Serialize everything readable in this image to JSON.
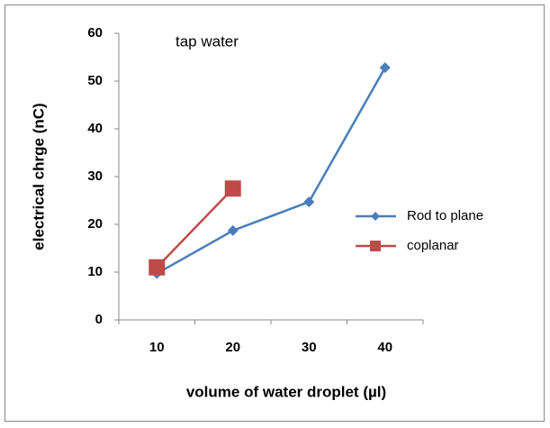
{
  "chart_data": {
    "type": "line",
    "title": "tap water",
    "x_label": "volume of water droplet (µl)",
    "y_label": "electrical chrge (nC)",
    "categories": [
      "10",
      "20",
      "30",
      "40"
    ],
    "series": [
      {
        "name": "Rod to plane",
        "color": "#4a7ebb",
        "marker": "diamond",
        "values": [
          9.7,
          18.7,
          24.7,
          52.8
        ]
      },
      {
        "name": "coplanar",
        "color": "#be4b48",
        "marker": "square",
        "values": [
          11,
          27.5,
          null,
          null
        ]
      }
    ],
    "ylim": [
      0,
      60
    ],
    "yticks": [
      0,
      10,
      20,
      30,
      40,
      50,
      60
    ],
    "grid": false,
    "legend": "right"
  }
}
